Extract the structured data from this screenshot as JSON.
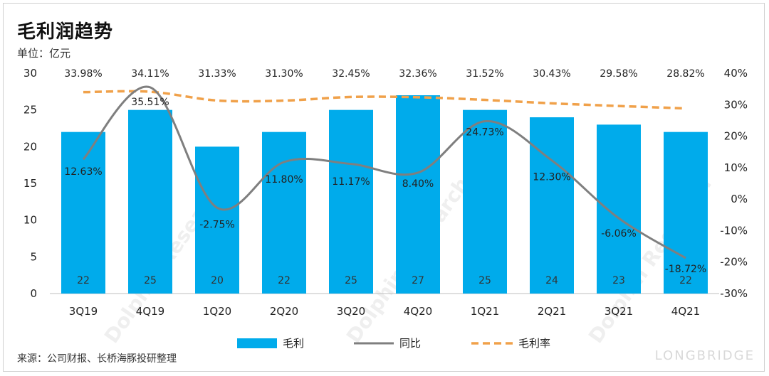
{
  "title": "毛利润趋势",
  "unit": "单位：亿元",
  "source": "来源：公司财报、长桥海豚投研整理",
  "watermark": "Dolphin Research",
  "watermark_brand": "LONGBRIDGE",
  "colors": {
    "bar": "#00ABEB",
    "yoy": "#7F7F7F",
    "margin": "#F0A14A"
  },
  "chart_data": {
    "type": "bar",
    "categories": [
      "3Q19",
      "4Q19",
      "1Q20",
      "2Q20",
      "3Q20",
      "4Q20",
      "1Q21",
      "2Q21",
      "3Q21",
      "4Q21"
    ],
    "ylim": [
      0,
      30
    ],
    "yticks": [
      0,
      5,
      10,
      15,
      20,
      25,
      30
    ],
    "y2lim": [
      -0.3,
      0.4
    ],
    "y2ticks": [
      "-30%",
      "-20%",
      "-10%",
      "0%",
      "10%",
      "20%",
      "30%",
      "40%"
    ],
    "series": [
      {
        "name": "毛利",
        "kind": "bar",
        "axis": "left",
        "values": [
          22,
          25,
          20,
          22,
          25,
          27,
          25,
          24,
          23,
          22
        ],
        "labels": [
          "22",
          "25",
          "20",
          "22",
          "25",
          "27",
          "25",
          "24",
          "23",
          "22"
        ]
      },
      {
        "name": "同比",
        "kind": "line",
        "axis": "right",
        "values": [
          0.1263,
          0.3551,
          -0.0275,
          0.118,
          0.1117,
          0.084,
          0.2473,
          0.123,
          -0.0606,
          -0.1872
        ],
        "labels": [
          "12.63%",
          "35.51%",
          "-2.75%",
          "11.80%",
          "11.17%",
          "8.40%",
          "24.73%",
          "12.30%",
          "-6.06%",
          "-18.72%"
        ]
      },
      {
        "name": "毛利率",
        "kind": "line-dashed",
        "axis": "right",
        "values": [
          0.3398,
          0.3411,
          0.3133,
          0.313,
          0.3245,
          0.3236,
          0.3152,
          0.3043,
          0.2958,
          0.2882
        ],
        "labels": [
          "33.98%",
          "34.11%",
          "31.33%",
          "31.30%",
          "32.45%",
          "32.36%",
          "31.52%",
          "30.43%",
          "29.58%",
          "28.82%"
        ]
      }
    ],
    "legend": "bottom"
  }
}
